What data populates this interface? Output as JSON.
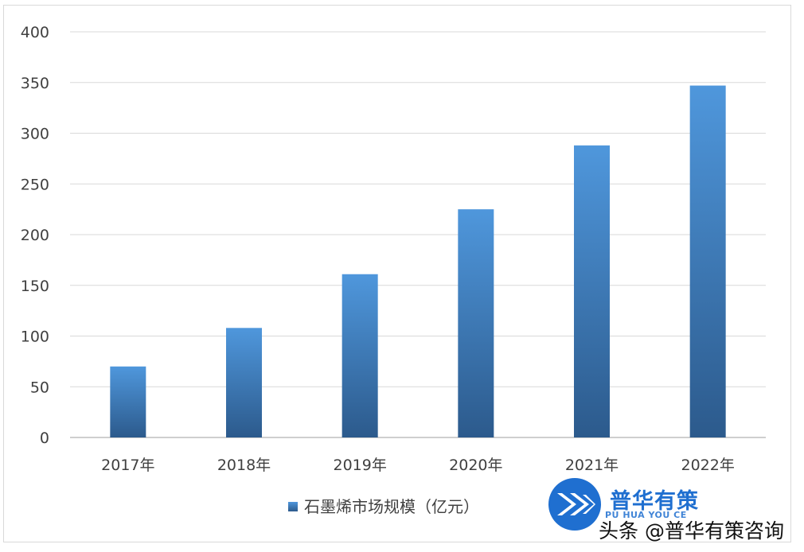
{
  "chart_data": {
    "type": "bar",
    "categories": [
      "2017年",
      "2018年",
      "2019年",
      "2020年",
      "2021年",
      "2022年"
    ],
    "series": [
      {
        "name": "石墨烯市场规模（亿元）",
        "values": [
          70,
          108,
          161,
          225,
          288,
          347
        ]
      }
    ],
    "yticks": [
      "0",
      "50",
      "100",
      "150",
      "200",
      "250",
      "300",
      "350",
      "400"
    ],
    "ylim": [
      0,
      400
    ],
    "grid": true,
    "legend": "bottom",
    "colors": {
      "bar_top": "#4f97dc",
      "bar_bottom": "#2c5a8c",
      "grid": "#d9d9d9",
      "axis": "#bfbfbf",
      "text": "#404040"
    }
  },
  "logo": {
    "name": "普华有策",
    "sub": "PU HUA YOU CE"
  },
  "watermark": "头条 @普华有策咨询"
}
